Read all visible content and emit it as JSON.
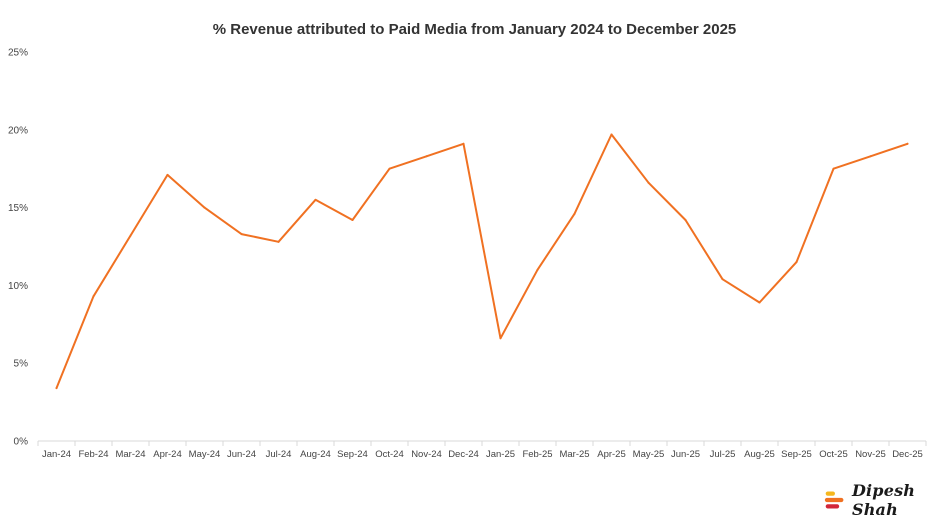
{
  "chart_data": {
    "type": "line",
    "title": "% Revenue attributed to Paid Media from January 2024 to December 2025",
    "xlabel": "",
    "ylabel": "",
    "categories": [
      "Jan-24",
      "Feb-24",
      "Mar-24",
      "Apr-24",
      "May-24",
      "Jun-24",
      "Jul-24",
      "Aug-24",
      "Sep-24",
      "Oct-24",
      "Nov-24",
      "Dec-24",
      "Jan-25",
      "Feb-25",
      "Mar-25",
      "Apr-25",
      "May-25",
      "Jun-25",
      "Jul-25",
      "Aug-25",
      "Sep-25",
      "Oct-25",
      "Nov-25",
      "Dec-25"
    ],
    "series": [
      {
        "name": "% Revenue attributed to Paid Media",
        "color": "#F07122",
        "values": [
          3.4,
          9.3,
          13.2,
          17.1,
          15.0,
          13.3,
          12.8,
          15.5,
          14.2,
          17.5,
          18.3,
          19.1,
          6.6,
          11.0,
          14.6,
          19.7,
          16.6,
          14.2,
          10.4,
          8.9,
          11.5,
          17.5,
          18.3,
          19.1
        ]
      }
    ],
    "ylim": [
      0,
      25
    ],
    "yticks": [
      0,
      5,
      10,
      15,
      20,
      25
    ],
    "ytick_labels": [
      "0%",
      "5%",
      "10%",
      "15%",
      "20%",
      "25%"
    ],
    "grid": false,
    "legend": "none"
  },
  "brand": {
    "name": "Dipesh Shah",
    "colors": [
      "#F5B71E",
      "#F07122",
      "#D32638"
    ]
  }
}
